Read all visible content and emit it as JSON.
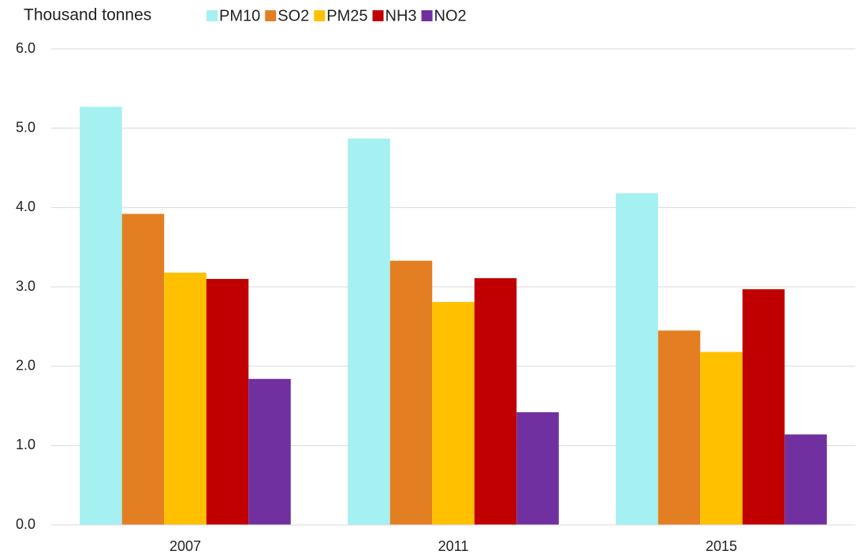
{
  "chart_data": {
    "type": "bar",
    "y_label": "Thousand tonnes",
    "categories": [
      "2007",
      "2011",
      "2015"
    ],
    "series": [
      {
        "name": "PM10",
        "color": "#a5f0f0",
        "values": [
          5.27,
          4.87,
          4.18
        ]
      },
      {
        "name": "SO2",
        "color": "#e37f22",
        "values": [
          3.92,
          3.33,
          2.45
        ]
      },
      {
        "name": "PM25",
        "color": "#ffc000",
        "values": [
          3.18,
          2.81,
          2.18
        ]
      },
      {
        "name": "NH3",
        "color": "#c00000",
        "values": [
          3.1,
          3.11,
          2.97
        ]
      },
      {
        "name": "NO2",
        "color": "#7030a0",
        "values": [
          1.84,
          1.42,
          1.14
        ]
      }
    ],
    "ylim": [
      0,
      6
    ],
    "yticks": [
      {
        "value": 0,
        "label": "0.0"
      },
      {
        "value": 1,
        "label": "1.0"
      },
      {
        "value": 2,
        "label": "2.0"
      },
      {
        "value": 3,
        "label": "3.0"
      },
      {
        "value": 4,
        "label": "4.0"
      },
      {
        "value": 5,
        "label": "5.0"
      },
      {
        "value": 6,
        "label": "6.0"
      }
    ],
    "grid": true,
    "legend": "top"
  }
}
